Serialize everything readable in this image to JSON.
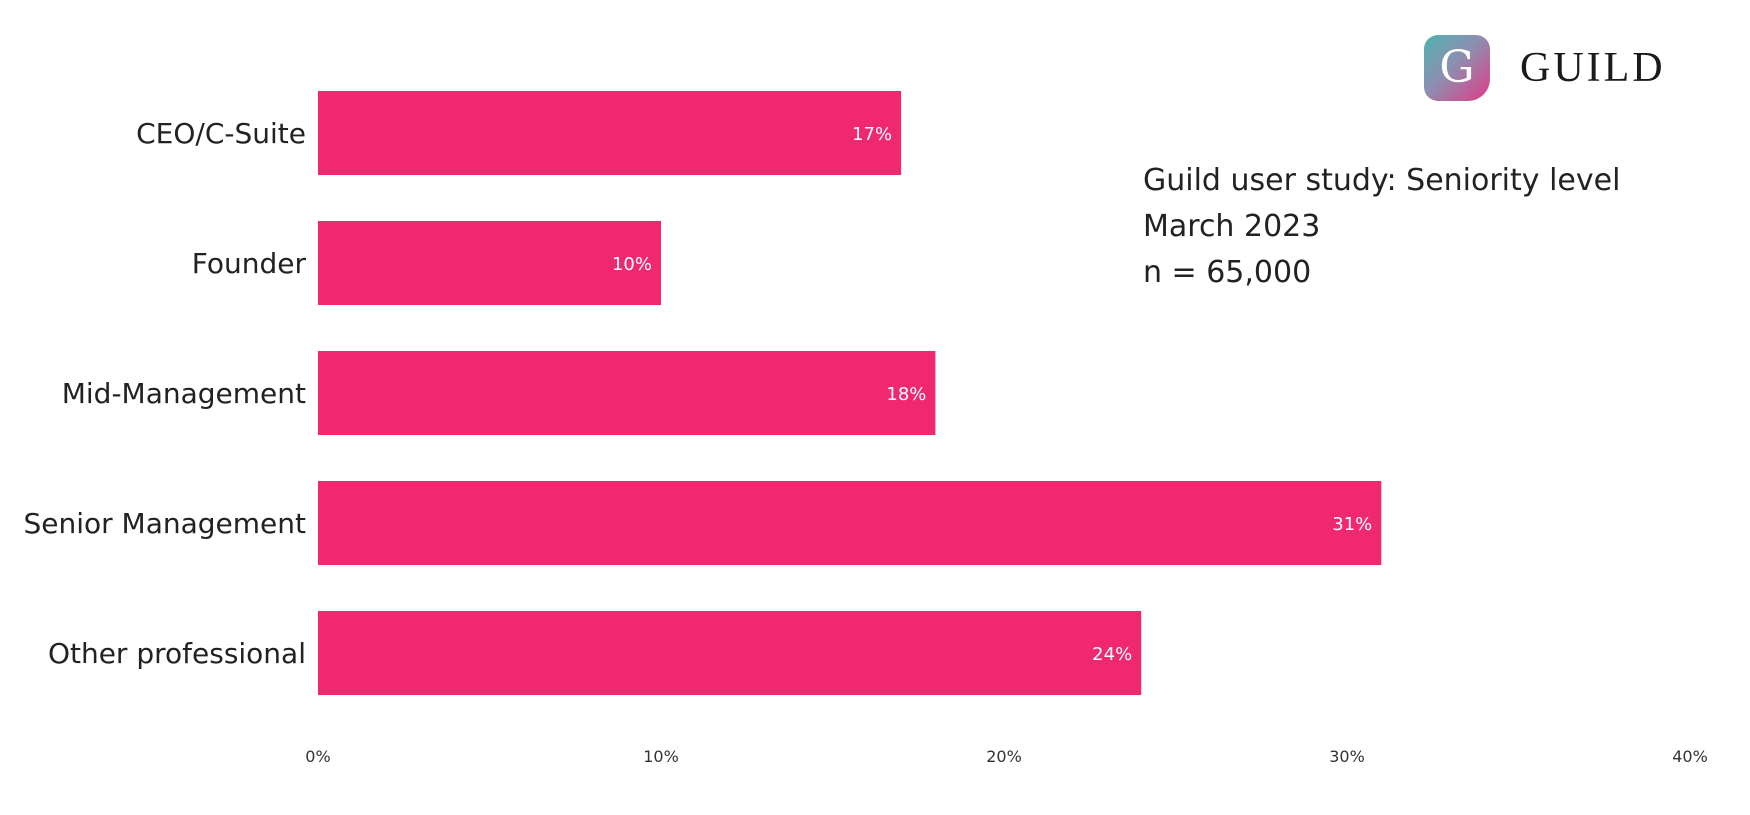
{
  "brand": {
    "logo_letter": "G",
    "name": "GUILD",
    "accent": "#f0286f"
  },
  "annotation": {
    "line1": "Guild user study: Seniority level",
    "line2": "March 2023",
    "line3": "n = 65,000"
  },
  "chart_data": {
    "type": "bar",
    "orientation": "horizontal",
    "categories": [
      "CEO/C-Suite",
      "Founder",
      "Mid-Management",
      "Senior Management",
      "Other professional"
    ],
    "values": [
      17,
      10,
      18,
      31,
      24
    ],
    "value_labels": [
      "17%",
      "10%",
      "18%",
      "31%",
      "24%"
    ],
    "xlim": [
      0,
      40
    ],
    "x_ticks": [
      0,
      10,
      20,
      30,
      40
    ],
    "x_tick_labels": [
      "0%",
      "10%",
      "20%",
      "30%",
      "40%"
    ],
    "bar_color": "#f0286f",
    "grid": false,
    "legend": "none"
  }
}
